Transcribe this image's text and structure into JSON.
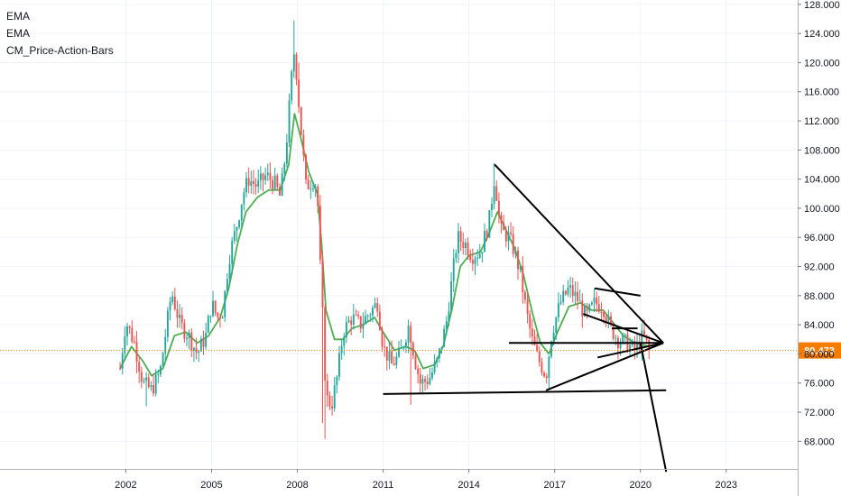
{
  "legend": [
    "EMA",
    "EMA",
    "CM_Price-Action-Bars"
  ],
  "colors": {
    "up": "#26a69a",
    "down": "#ef5350",
    "ema": "#4caf50",
    "trendline": "#000000",
    "last_price": "#f57c00",
    "grid": "#f0f3fa",
    "axis_text": "#131722"
  },
  "chart_data": {
    "type": "candlestick",
    "title": "",
    "xlabel": "",
    "ylabel": "",
    "x_ticks": [
      "2002",
      "2005",
      "2008",
      "2011",
      "2014",
      "2017",
      "2020",
      "2023"
    ],
    "y_ticks": [
      "68.000",
      "72.000",
      "76.000",
      "80.000",
      "84.000",
      "88.000",
      "92.000",
      "96.000",
      "100.000",
      "104.000",
      "108.000",
      "112.000",
      "116.000",
      "120.000",
      "124.000",
      "128.000"
    ],
    "xlim": [
      1997.6,
      2025.5
    ],
    "ylim": [
      64.2,
      128.6
    ],
    "last_price": "80.473",
    "grid": true,
    "close_path": [
      [
        2001.8,
        78.0
      ],
      [
        2002.0,
        84.5
      ],
      [
        2002.3,
        81.5
      ],
      [
        2002.6,
        76.0
      ],
      [
        2002.9,
        75.0
      ],
      [
        2003.2,
        77.5
      ],
      [
        2003.4,
        83.0
      ],
      [
        2003.6,
        88.5
      ],
      [
        2003.9,
        84.0
      ],
      [
        2004.2,
        82.5
      ],
      [
        2004.5,
        80.0
      ],
      [
        2004.8,
        82.5
      ],
      [
        2005.0,
        87.0
      ],
      [
        2005.2,
        85.0
      ],
      [
        2005.4,
        86.0
      ],
      [
        2005.6,
        93.0
      ],
      [
        2005.9,
        98.0
      ],
      [
        2006.1,
        102.0
      ],
      [
        2006.3,
        104.0
      ],
      [
        2006.6,
        103.0
      ],
      [
        2006.9,
        104.5
      ],
      [
        2007.2,
        103.5
      ],
      [
        2007.4,
        101.5
      ],
      [
        2007.6,
        108.0
      ],
      [
        2007.8,
        118.0
      ],
      [
        2007.9,
        122.0
      ],
      [
        2008.1,
        112.0
      ],
      [
        2008.3,
        103.0
      ],
      [
        2008.6,
        104.0
      ],
      [
        2008.7,
        102.0
      ],
      [
        2008.8,
        92.0
      ],
      [
        2008.9,
        84.0
      ],
      [
        2009.0,
        74.0
      ],
      [
        2009.2,
        73.0
      ],
      [
        2009.4,
        77.0
      ],
      [
        2009.6,
        83.0
      ],
      [
        2009.9,
        85.0
      ],
      [
        2010.2,
        84.0
      ],
      [
        2010.5,
        85.5
      ],
      [
        2010.8,
        87.0
      ],
      [
        2011.0,
        81.0
      ],
      [
        2011.3,
        78.5
      ],
      [
        2011.6,
        80.0
      ],
      [
        2011.9,
        84.0
      ],
      [
        2012.1,
        79.5
      ],
      [
        2012.3,
        76.0
      ],
      [
        2012.6,
        76.5
      ],
      [
        2012.9,
        79.0
      ],
      [
        2013.2,
        84.0
      ],
      [
        2013.4,
        90.0
      ],
      [
        2013.6,
        96.0
      ],
      [
        2013.9,
        95.0
      ],
      [
        2014.1,
        93.5
      ],
      [
        2014.4,
        94.0
      ],
      [
        2014.7,
        98.0
      ],
      [
        2014.9,
        104.5
      ],
      [
        2015.1,
        97.0
      ],
      [
        2015.4,
        96.0
      ],
      [
        2015.6,
        94.0
      ],
      [
        2015.8,
        91.0
      ],
      [
        2016.0,
        86.0
      ],
      [
        2016.2,
        82.0
      ],
      [
        2016.4,
        79.5
      ],
      [
        2016.7,
        77.0
      ],
      [
        2016.9,
        83.0
      ],
      [
        2017.2,
        87.0
      ],
      [
        2017.5,
        89.0
      ],
      [
        2017.8,
        87.5
      ],
      [
        2018.1,
        85.0
      ],
      [
        2018.4,
        87.0
      ],
      [
        2018.7,
        86.5
      ],
      [
        2018.9,
        84.0
      ],
      [
        2019.2,
        82.0
      ],
      [
        2019.5,
        81.5
      ],
      [
        2019.8,
        80.5
      ],
      [
        2020.1,
        82.5
      ],
      [
        2020.3,
        80.473
      ]
    ],
    "ema_path": [
      [
        2001.8,
        78.0
      ],
      [
        2002.2,
        81.0
      ],
      [
        2002.6,
        79.0
      ],
      [
        2002.9,
        77.0
      ],
      [
        2003.3,
        78.0
      ],
      [
        2003.7,
        82.5
      ],
      [
        2004.1,
        83.0
      ],
      [
        2004.5,
        81.5
      ],
      [
        2004.9,
        82.5
      ],
      [
        2005.3,
        85.0
      ],
      [
        2005.6,
        89.0
      ],
      [
        2005.9,
        95.0
      ],
      [
        2006.2,
        99.5
      ],
      [
        2006.6,
        101.5
      ],
      [
        2007.0,
        102.5
      ],
      [
        2007.4,
        102.5
      ],
      [
        2007.7,
        106.0
      ],
      [
        2007.9,
        113.0
      ],
      [
        2008.1,
        110.0
      ],
      [
        2008.4,
        105.0
      ],
      [
        2008.7,
        102.0
      ],
      [
        2008.85,
        95.0
      ],
      [
        2009.0,
        86.0
      ],
      [
        2009.3,
        82.0
      ],
      [
        2009.6,
        82.0
      ],
      [
        2009.9,
        83.5
      ],
      [
        2010.3,
        84.0
      ],
      [
        2010.7,
        85.0
      ],
      [
        2011.0,
        83.0
      ],
      [
        2011.4,
        80.5
      ],
      [
        2011.8,
        81.0
      ],
      [
        2012.1,
        80.5
      ],
      [
        2012.4,
        78.0
      ],
      [
        2012.8,
        78.5
      ],
      [
        2013.1,
        81.0
      ],
      [
        2013.4,
        86.0
      ],
      [
        2013.7,
        92.0
      ],
      [
        2014.0,
        93.5
      ],
      [
        2014.4,
        94.0
      ],
      [
        2014.7,
        96.5
      ],
      [
        2015.0,
        99.5
      ],
      [
        2015.3,
        97.0
      ],
      [
        2015.6,
        94.5
      ],
      [
        2015.9,
        91.0
      ],
      [
        2016.2,
        86.0
      ],
      [
        2016.5,
        81.5
      ],
      [
        2016.8,
        80.0
      ],
      [
        2017.1,
        83.0
      ],
      [
        2017.5,
        86.5
      ],
      [
        2017.9,
        87.0
      ],
      [
        2018.3,
        86.0
      ],
      [
        2018.7,
        86.0
      ],
      [
        2019.0,
        84.5
      ],
      [
        2019.4,
        82.5
      ],
      [
        2019.8,
        81.5
      ],
      [
        2020.3,
        81.0
      ]
    ],
    "lows": [
      [
        2002.7,
        72.8
      ],
      [
        2008.9,
        70.5
      ],
      [
        2009.0,
        68.3
      ],
      [
        2012.0,
        73.0
      ],
      [
        2016.8,
        75.0
      ]
    ],
    "highs": [
      [
        2007.9,
        125.8
      ],
      [
        2014.9,
        106.2
      ],
      [
        2008.05,
        120.0
      ]
    ],
    "trendlines": [
      {
        "from": [
          2014.9,
          106.0
        ],
        "to": [
          2020.8,
          81.5
        ]
      },
      {
        "from": [
          2016.7,
          75.0
        ],
        "to": [
          2020.8,
          81.5
        ]
      },
      {
        "from": [
          2015.4,
          81.5
        ],
        "to": [
          2020.8,
          81.5
        ]
      },
      {
        "from": [
          2011.0,
          74.5
        ],
        "to": [
          2020.9,
          75.0
        ]
      },
      {
        "from": [
          2018.4,
          89.0
        ],
        "to": [
          2020.0,
          88.0
        ]
      },
      {
        "from": [
          2018.0,
          85.5
        ],
        "to": [
          2020.8,
          81.5
        ]
      },
      {
        "from": [
          2018.5,
          79.5
        ],
        "to": [
          2020.8,
          81.5
        ]
      },
      {
        "from": [
          2020.0,
          81.5
        ],
        "to": [
          2020.9,
          63.8
        ]
      },
      {
        "from": [
          2019.0,
          83.5
        ],
        "to": [
          2019.9,
          83.5
        ]
      }
    ]
  }
}
